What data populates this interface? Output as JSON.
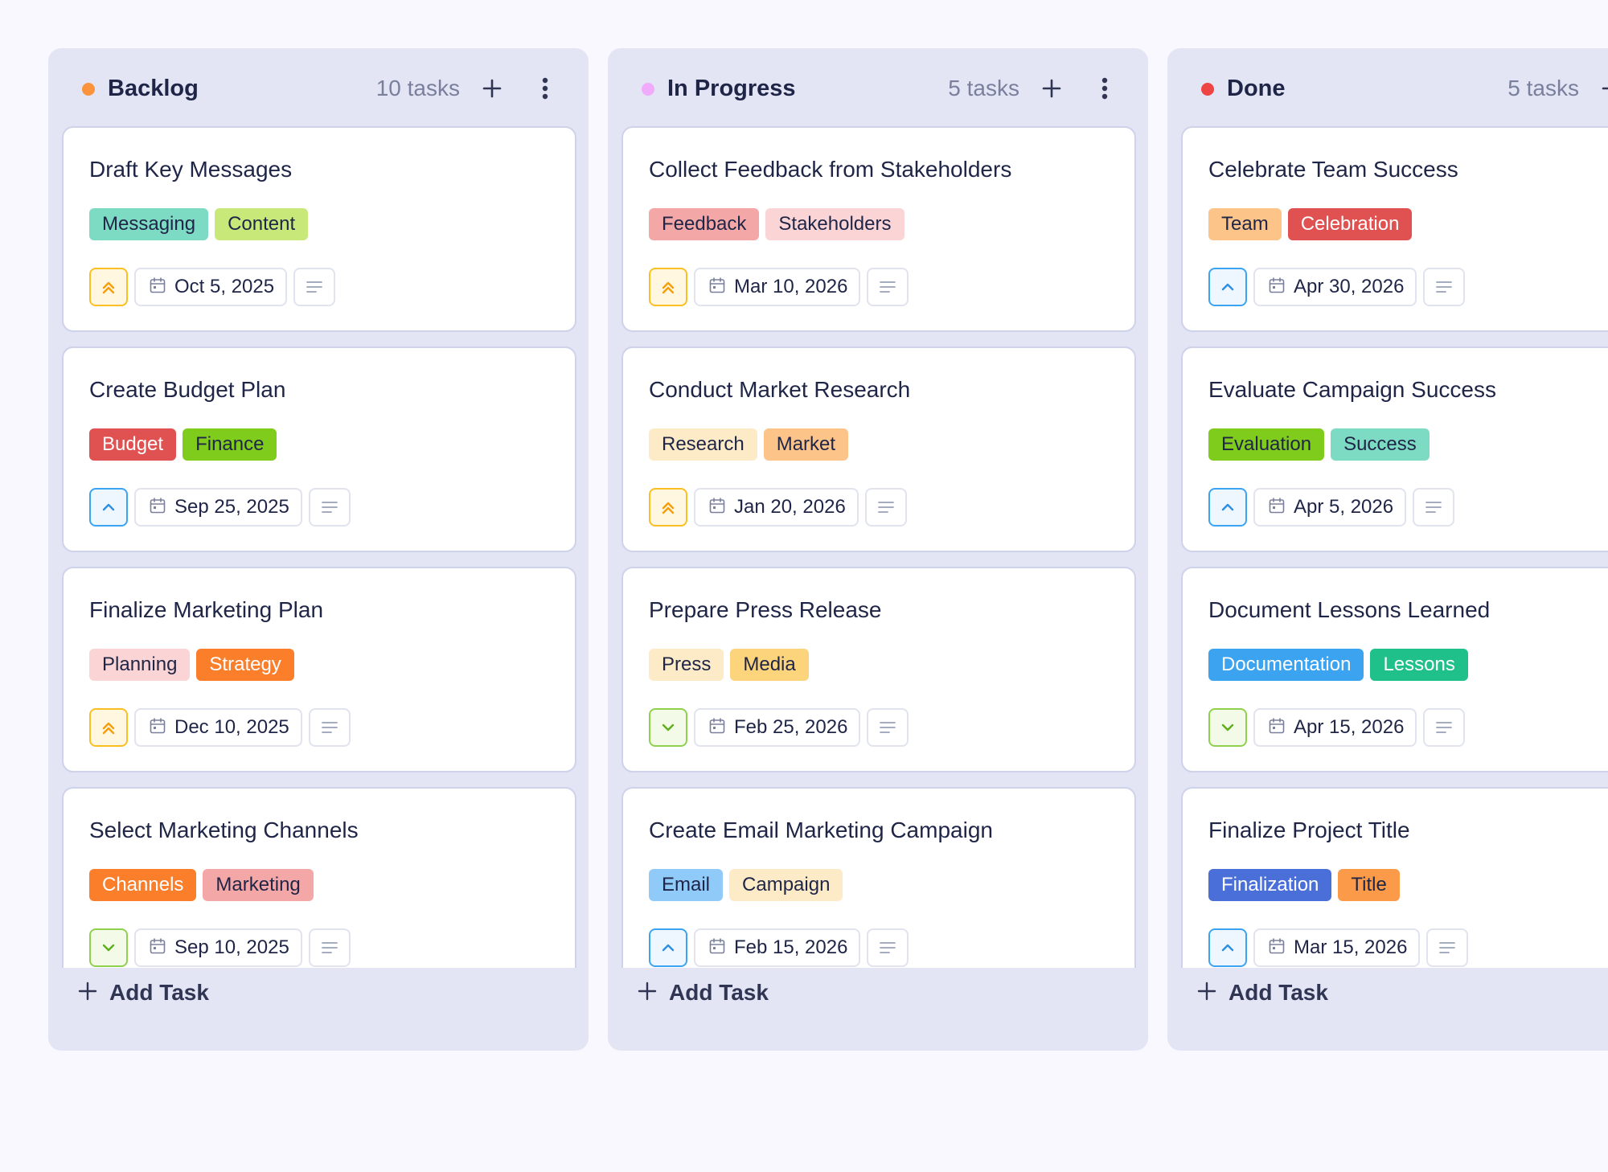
{
  "colors": {
    "column_bg": "#e3e5f5",
    "card_border": "#ced2ea",
    "text": "#1f2547",
    "muted": "#7a809c"
  },
  "icons": {
    "column_add": "plus-icon",
    "column_menu": "kebab-menu-icon",
    "date": "calendar-icon",
    "description": "description-lines-icon",
    "add_task": "plus-icon",
    "priority_high": "double-chevron-up-icon",
    "priority_medium": "chevron-up-icon",
    "priority_low": "chevron-down-icon"
  },
  "columns": [
    {
      "title": "Backlog",
      "count_label": "10 tasks",
      "dot_color": "#fb923c",
      "add_task_label": "Add Task",
      "cards": [
        {
          "title": "Draft Key Messages",
          "tags": [
            {
              "label": "Messaging",
              "bg": "#7ddbc3",
              "fg": "#1f2547"
            },
            {
              "label": "Content",
              "bg": "#c8e87a",
              "fg": "#1f2547"
            }
          ],
          "priority": "high",
          "date": "Oct 5, 2025"
        },
        {
          "title": "Create Budget Plan",
          "tags": [
            {
              "label": "Budget",
              "bg": "#e05252",
              "fg": "#ffffff"
            },
            {
              "label": "Finance",
              "bg": "#80cc1c",
              "fg": "#1f2547"
            }
          ],
          "priority": "medium",
          "date": "Sep 25, 2025"
        },
        {
          "title": "Finalize Marketing Plan",
          "tags": [
            {
              "label": "Planning",
              "bg": "#fbd5d5",
              "fg": "#1f2547"
            },
            {
              "label": "Strategy",
              "bg": "#fb7e2b",
              "fg": "#ffffff"
            }
          ],
          "priority": "high",
          "date": "Dec 10, 2025"
        },
        {
          "title": "Select Marketing Channels",
          "tags": [
            {
              "label": "Channels",
              "bg": "#fb7e2b",
              "fg": "#ffffff"
            },
            {
              "label": "Marketing",
              "bg": "#f4a7a7",
              "fg": "#1f2547"
            }
          ],
          "priority": "low",
          "date": "Sep 10, 2025"
        }
      ]
    },
    {
      "title": "In Progress",
      "count_label": "5 tasks",
      "dot_color": "#f0abfc",
      "add_task_label": "Add Task",
      "cards": [
        {
          "title": "Collect Feedback from Stakeholders",
          "tags": [
            {
              "label": "Feedback",
              "bg": "#f4a7a7",
              "fg": "#1f2547"
            },
            {
              "label": "Stakeholders",
              "bg": "#fbd5d5",
              "fg": "#1f2547"
            }
          ],
          "priority": "high",
          "date": "Mar 10, 2026"
        },
        {
          "title": "Conduct Market Research",
          "tags": [
            {
              "label": "Research",
              "bg": "#fdebc8",
              "fg": "#1f2547"
            },
            {
              "label": "Market",
              "bg": "#fdc48a",
              "fg": "#1f2547"
            }
          ],
          "priority": "high",
          "date": "Jan 20, 2026"
        },
        {
          "title": "Prepare Press Release",
          "tags": [
            {
              "label": "Press",
              "bg": "#fdebc8",
              "fg": "#1f2547"
            },
            {
              "label": "Media",
              "bg": "#fcd47c",
              "fg": "#1f2547"
            }
          ],
          "priority": "low",
          "date": "Feb 25, 2026"
        },
        {
          "title": "Create Email Marketing Campaign",
          "tags": [
            {
              "label": "Email",
              "bg": "#8fcaf8",
              "fg": "#1f2547"
            },
            {
              "label": "Campaign",
              "bg": "#fdebc8",
              "fg": "#1f2547"
            }
          ],
          "priority": "medium",
          "date": "Feb 15, 2026"
        }
      ]
    },
    {
      "title": "Done",
      "count_label": "5 tasks",
      "dot_color": "#ef4444",
      "add_task_label": "Add Task",
      "cards": [
        {
          "title": "Celebrate Team Success",
          "tags": [
            {
              "label": "Team",
              "bg": "#fdc48a",
              "fg": "#1f2547"
            },
            {
              "label": "Celebration",
              "bg": "#e05252",
              "fg": "#ffffff"
            }
          ],
          "priority": "medium",
          "date": "Apr 30, 2026"
        },
        {
          "title": "Evaluate Campaign Success",
          "tags": [
            {
              "label": "Evaluation",
              "bg": "#80cc1c",
              "fg": "#1f2547"
            },
            {
              "label": "Success",
              "bg": "#7ddbc3",
              "fg": "#1f2547"
            }
          ],
          "priority": "medium",
          "date": "Apr 5, 2026"
        },
        {
          "title": "Document Lessons Learned",
          "tags": [
            {
              "label": "Documentation",
              "bg": "#3ba3f0",
              "fg": "#ffffff"
            },
            {
              "label": "Lessons",
              "bg": "#1fc08a",
              "fg": "#ffffff"
            }
          ],
          "priority": "low",
          "date": "Apr 15, 2026"
        },
        {
          "title": "Finalize Project Title",
          "tags": [
            {
              "label": "Finalization",
              "bg": "#4a6fd8",
              "fg": "#ffffff"
            },
            {
              "label": "Title",
              "bg": "#fb9a48",
              "fg": "#1f2547"
            }
          ],
          "priority": "medium",
          "date": "Mar 15, 2026"
        }
      ]
    }
  ]
}
